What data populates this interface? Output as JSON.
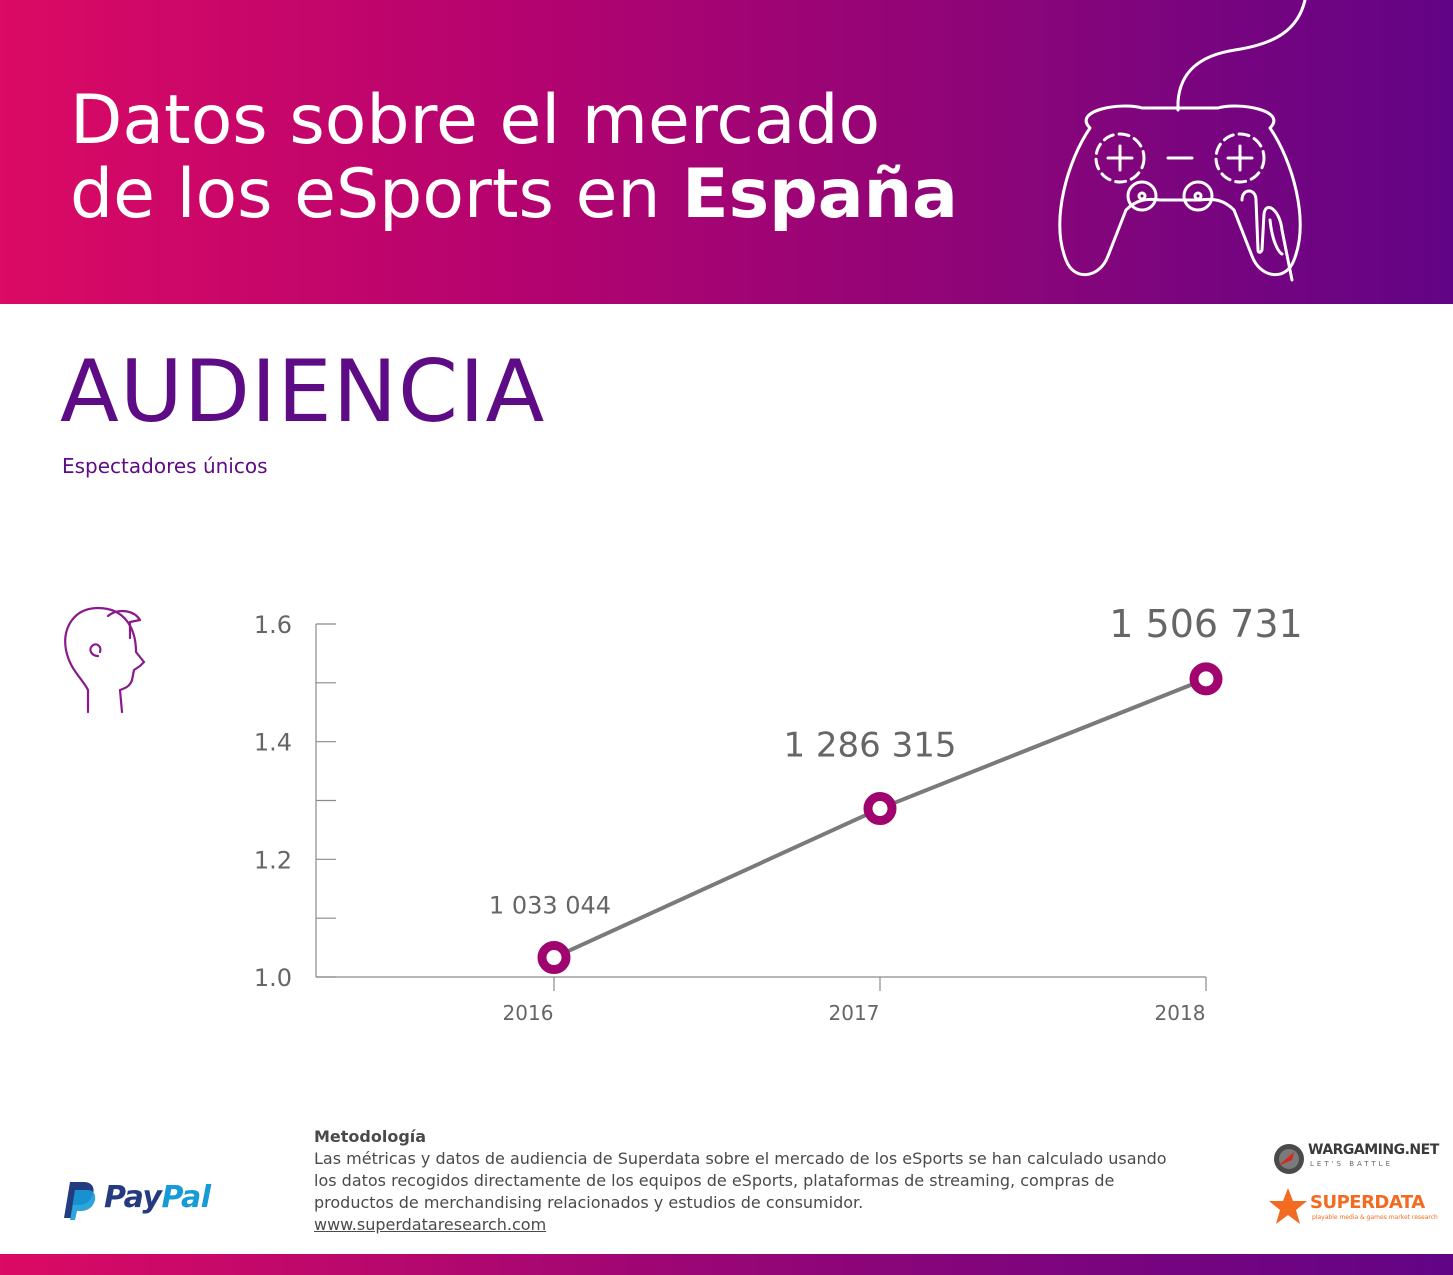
{
  "header": {
    "title_line1": "Datos sobre el mercado",
    "title_line2_prefix": "de los eSports en ",
    "title_line2_bold": "España"
  },
  "section": {
    "title": "AUDIENCIA",
    "subtitle": "Espectadores únicos"
  },
  "chart_data": {
    "type": "line",
    "title": "",
    "xlabel": "",
    "ylabel": "",
    "x": [
      "2016",
      "2017",
      "2018"
    ],
    "series": [
      {
        "values": [
          1.033044,
          1.286315,
          1.506731
        ],
        "labels": [
          "1 033 044",
          "1 286 315",
          "1 506 731"
        ]
      }
    ],
    "ylim": [
      1.0,
      1.6
    ],
    "yticks": [
      "1.0",
      "1.2",
      "1.4",
      "1.6"
    ],
    "minor_ticks": [
      1.1,
      1.3,
      1.5
    ],
    "grid": false,
    "colors": {
      "line": "#7a7a7a",
      "marker": "#a0056f",
      "axis": "#8a8a8a",
      "tick_text": "#666666",
      "label_text": "#666666"
    }
  },
  "footer": {
    "method_title": "Metodología",
    "method_text": "Las métricas y datos de audiencia de Superdata sobre el mercado de los eSports se han calculado usando los datos recogidos directamente de los equipos de eSports, plataformas de streaming, compras de productos de merchandising relacionados y estudios de consumidor.",
    "method_link": "www.superdataresearch.com"
  },
  "logos": {
    "paypal_a": "Pay",
    "paypal_b": "Pal",
    "wargaming": "WARGAMING.NET",
    "wargaming_tag": "LET'S BATTLE",
    "superdata": "SUPERDATA",
    "superdata_tag": "playable media & games market research"
  },
  "icons": [
    "gamepad-icon",
    "head-icon",
    "paypal-logo",
    "wargaming-logo",
    "superdata-logo"
  ]
}
